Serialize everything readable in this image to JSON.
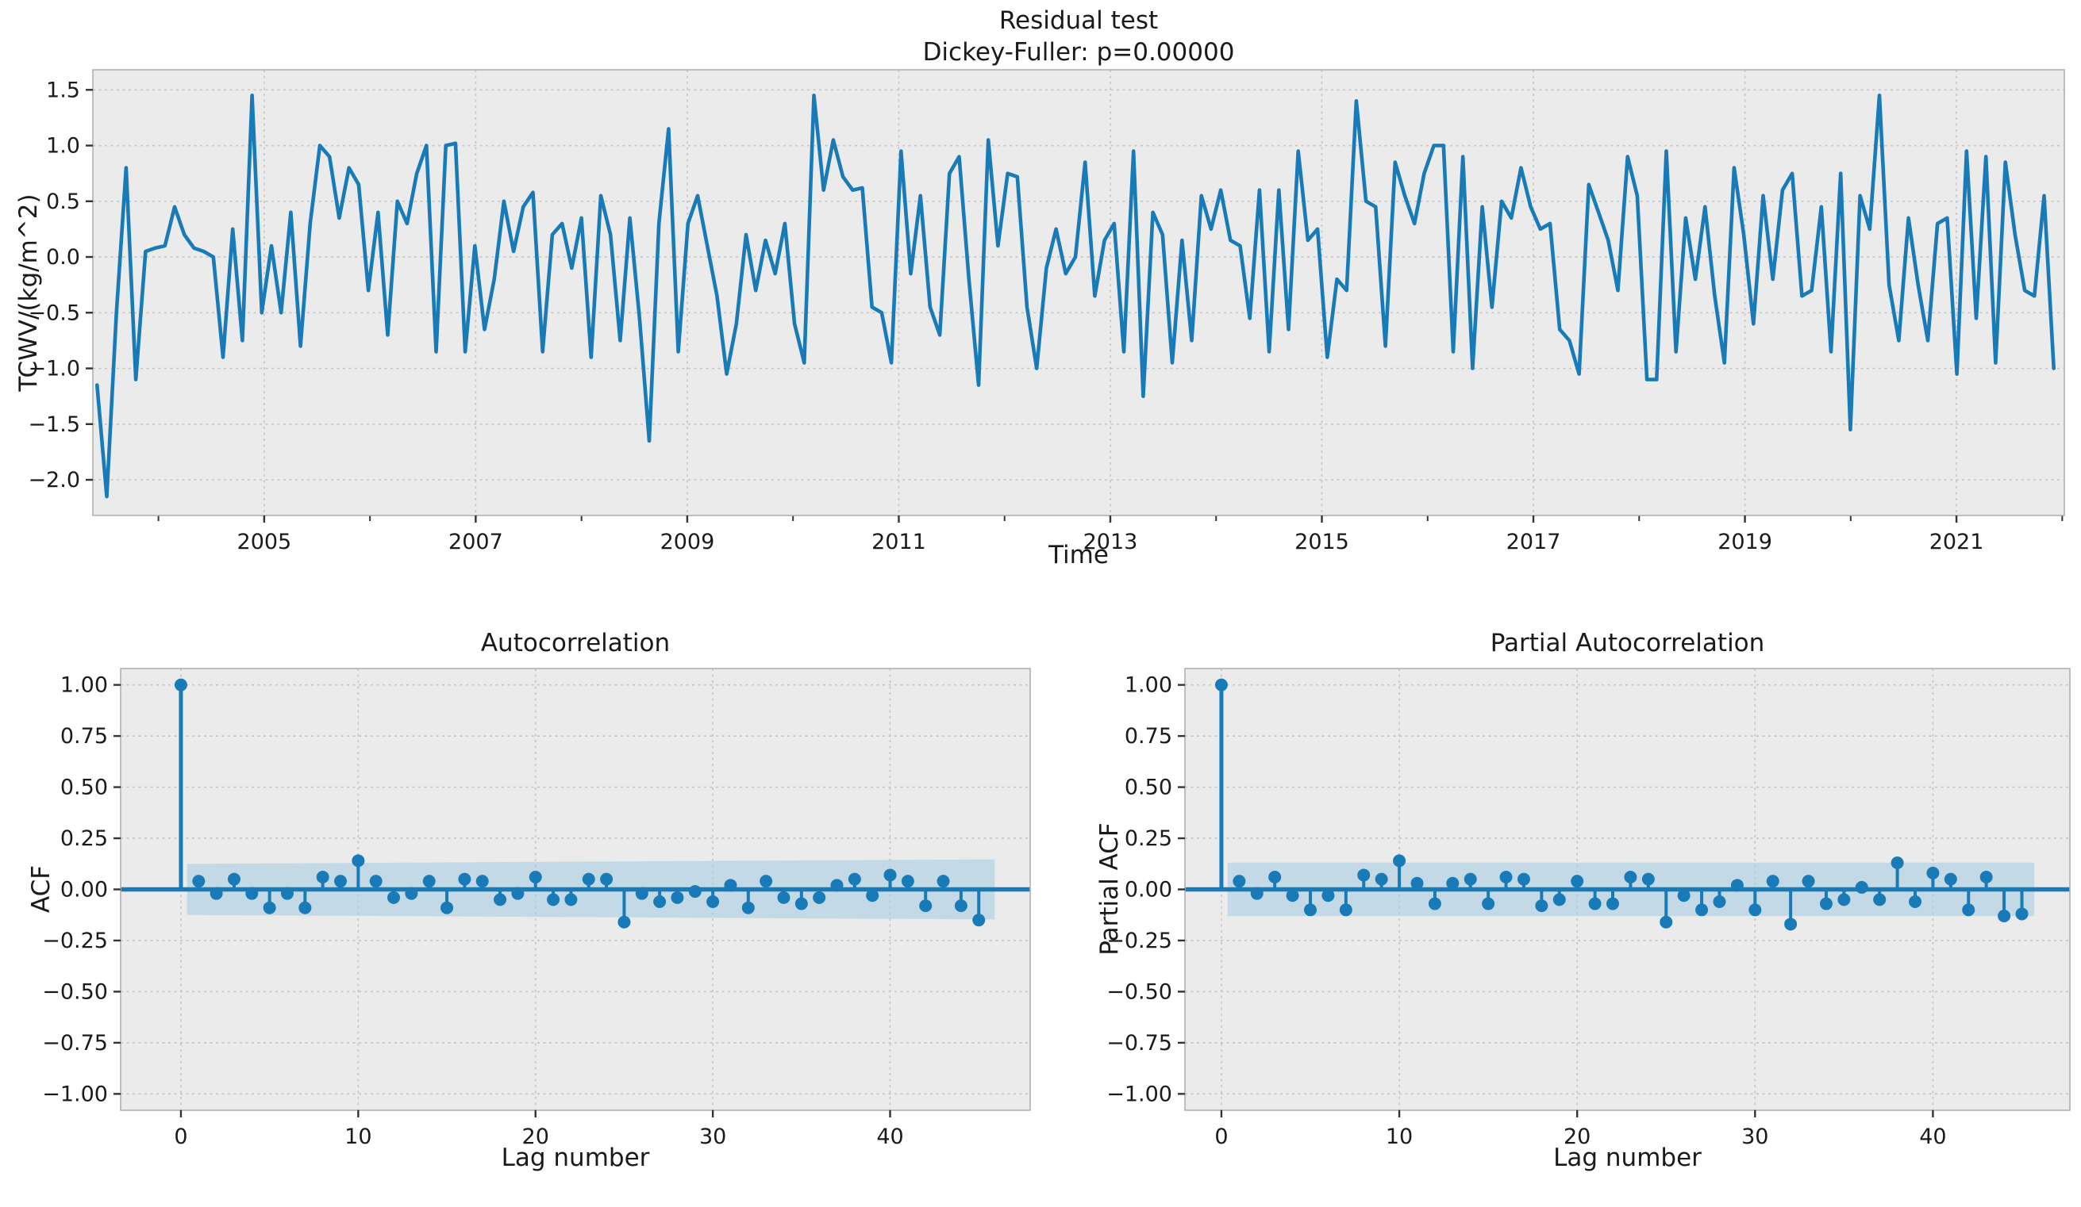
{
  "figure": {
    "background": "#ffffff",
    "axes_background": "#ebebeb",
    "grid_color": "#c6c6c6",
    "spine_color": "#b0b0b0",
    "tick_color": "#333333",
    "text_color": "#1a1a1a",
    "line_color": "#187bb8",
    "band_color": "#abd0e4"
  },
  "chart_data": [
    {
      "id": "residuals",
      "type": "line",
      "title": "Residual test",
      "subtitle": "Dickey-Fuller: p=0.00000",
      "xlabel": "Time",
      "ylabel": "TCWV/(kg/m^2)",
      "legend": "none",
      "grid": "dashed",
      "x_start": 2003.42,
      "x_end": 2021.92,
      "xlim": [
        2003.38,
        2022.02
      ],
      "ylim": [
        -2.32,
        1.68
      ],
      "yticks": [
        1.5,
        1.0,
        0.5,
        0.0,
        -0.5,
        -1.0,
        -1.5,
        -2.0
      ],
      "ytick_labels": [
        "1.5",
        "1.0",
        "0.5",
        "0.0",
        "−0.5",
        "−1.0",
        "−1.5",
        "−2.0"
      ],
      "xticks": [
        2005,
        2007,
        2009,
        2011,
        2013,
        2015,
        2017,
        2019,
        2021
      ],
      "xtick_labels": [
        "2005",
        "2007",
        "2009",
        "2011",
        "2013",
        "2015",
        "2017",
        "2019",
        "2021"
      ],
      "minor_xticks": [
        2004,
        2005,
        2006,
        2007,
        2008,
        2009,
        2010,
        2011,
        2012,
        2013,
        2014,
        2015,
        2016,
        2017,
        2018,
        2019,
        2020,
        2021,
        2022
      ],
      "values": [
        -1.15,
        -2.15,
        -0.5,
        0.8,
        -1.1,
        0.05,
        0.08,
        0.1,
        0.45,
        0.2,
        0.08,
        0.05,
        0.0,
        -0.9,
        0.25,
        -0.75,
        1.45,
        -0.5,
        0.1,
        -0.5,
        0.4,
        -0.8,
        0.3,
        1.0,
        0.9,
        0.35,
        0.8,
        0.65,
        -0.3,
        0.4,
        -0.7,
        0.5,
        0.3,
        0.75,
        1.0,
        -0.85,
        1.0,
        1.02,
        -0.85,
        0.1,
        -0.65,
        -0.2,
        0.5,
        0.05,
        0.45,
        0.58,
        -0.85,
        0.2,
        0.3,
        -0.1,
        0.35,
        -0.9,
        0.55,
        0.2,
        -0.75,
        0.35,
        -0.55,
        -1.65,
        0.3,
        1.15,
        -0.85,
        0.3,
        0.55,
        0.1,
        -0.35,
        -1.05,
        -0.6,
        0.2,
        -0.3,
        0.15,
        -0.15,
        0.3,
        -0.6,
        -0.95,
        1.45,
        0.6,
        1.05,
        0.72,
        0.6,
        0.62,
        -0.45,
        -0.5,
        -0.95,
        0.95,
        -0.15,
        0.55,
        -0.45,
        -0.7,
        0.75,
        0.9,
        -0.2,
        -1.15,
        1.05,
        0.1,
        0.75,
        0.72,
        -0.45,
        -1.0,
        -0.1,
        0.25,
        -0.15,
        0.0,
        0.85,
        -0.35,
        0.15,
        0.3,
        -0.85,
        0.95,
        -1.25,
        0.4,
        0.2,
        -0.95,
        0.15,
        -0.75,
        0.55,
        0.25,
        0.6,
        0.15,
        0.1,
        -0.55,
        0.6,
        -0.85,
        0.6,
        -0.65,
        0.95,
        0.15,
        0.25,
        -0.9,
        -0.2,
        -0.3,
        1.4,
        0.5,
        0.45,
        -0.8,
        0.85,
        0.55,
        0.3,
        0.75,
        1.0,
        1.0,
        -0.85,
        0.9,
        -1.0,
        0.45,
        -0.45,
        0.5,
        0.35,
        0.8,
        0.45,
        0.25,
        0.3,
        -0.65,
        -0.75,
        -1.05,
        0.65,
        0.4,
        0.15,
        -0.3,
        0.9,
        0.55,
        -1.1,
        -1.1,
        0.95,
        -0.85,
        0.35,
        -0.2,
        0.45,
        -0.35,
        -0.95,
        0.8,
        0.2,
        -0.6,
        0.55,
        -0.2,
        0.6,
        0.75,
        -0.35,
        -0.3,
        0.45,
        -0.85,
        0.75,
        -1.55,
        0.55,
        0.25,
        1.45,
        -0.25,
        -0.75,
        0.35,
        -0.25,
        -0.75,
        0.3,
        0.35,
        -1.05,
        0.95,
        -0.55,
        0.9,
        -0.95,
        0.85,
        0.2,
        -0.3,
        -0.35,
        0.55,
        -1.0
      ]
    },
    {
      "id": "acf",
      "type": "stem",
      "title": "Autocorrelation",
      "xlabel": "Lag number",
      "ylabel": "ACF",
      "grid": "dashed",
      "xlim": [
        -3.4,
        47.9
      ],
      "ylim": [
        -1.08,
        1.08
      ],
      "yticks": [
        1.0,
        0.75,
        0.5,
        0.25,
        0.0,
        -0.25,
        -0.5,
        -0.75,
        -1.0
      ],
      "ytick_labels": [
        "1.00",
        "0.75",
        "0.50",
        "0.25",
        "0.00",
        "−0.25",
        "−0.50",
        "−0.75",
        "−1.00"
      ],
      "xticks": [
        0,
        10,
        20,
        30,
        40
      ],
      "xtick_labels": [
        "0",
        "10",
        "20",
        "30",
        "40"
      ],
      "conf_band": {
        "start_lag": 0.35,
        "end_lag": 45.9,
        "half_width_start": 0.125,
        "half_width_end": 0.147
      },
      "lags": "0-45",
      "values": [
        1.0,
        0.04,
        -0.02,
        0.05,
        -0.02,
        -0.09,
        -0.02,
        -0.09,
        0.06,
        0.04,
        0.14,
        0.04,
        -0.04,
        -0.02,
        0.04,
        -0.09,
        0.05,
        0.04,
        -0.05,
        -0.02,
        0.06,
        -0.05,
        -0.05,
        0.05,
        0.05,
        -0.16,
        -0.02,
        -0.06,
        -0.04,
        -0.01,
        -0.06,
        0.02,
        -0.09,
        0.04,
        -0.04,
        -0.07,
        -0.04,
        0.02,
        0.05,
        -0.03,
        0.07,
        0.04,
        -0.08,
        0.04,
        -0.08,
        -0.15
      ]
    },
    {
      "id": "pacf",
      "type": "stem",
      "title": "Partial Autocorrelation",
      "xlabel": "Lag number",
      "ylabel": "Partial ACF",
      "grid": "dashed",
      "xlim": [
        -2.05,
        47.7
      ],
      "ylim": [
        -1.08,
        1.08
      ],
      "yticks": [
        1.0,
        0.75,
        0.5,
        0.25,
        0.0,
        -0.25,
        -0.5,
        -0.75,
        -1.0
      ],
      "ytick_labels": [
        "1.00",
        "0.75",
        "0.50",
        "0.25",
        "0.00",
        "−0.25",
        "−0.50",
        "−0.75",
        "−1.00"
      ],
      "xticks": [
        0,
        10,
        20,
        30,
        40
      ],
      "xtick_labels": [
        "0",
        "10",
        "20",
        "30",
        "40"
      ],
      "conf_band": {
        "start_lag": 0.35,
        "end_lag": 45.7,
        "half_width_start": 0.131,
        "half_width_end": 0.131
      },
      "lags": "0-45",
      "values": [
        1.0,
        0.04,
        -0.02,
        0.06,
        -0.03,
        -0.1,
        -0.03,
        -0.1,
        0.07,
        0.05,
        0.14,
        0.03,
        -0.07,
        0.03,
        0.05,
        -0.07,
        0.06,
        0.05,
        -0.08,
        -0.05,
        0.04,
        -0.07,
        -0.07,
        0.06,
        0.05,
        -0.16,
        -0.03,
        -0.1,
        -0.06,
        0.02,
        -0.1,
        0.04,
        -0.17,
        0.04,
        -0.07,
        -0.05,
        0.01,
        -0.05,
        0.13,
        -0.06,
        0.08,
        0.05,
        -0.1,
        0.06,
        -0.13,
        -0.12
      ]
    }
  ]
}
